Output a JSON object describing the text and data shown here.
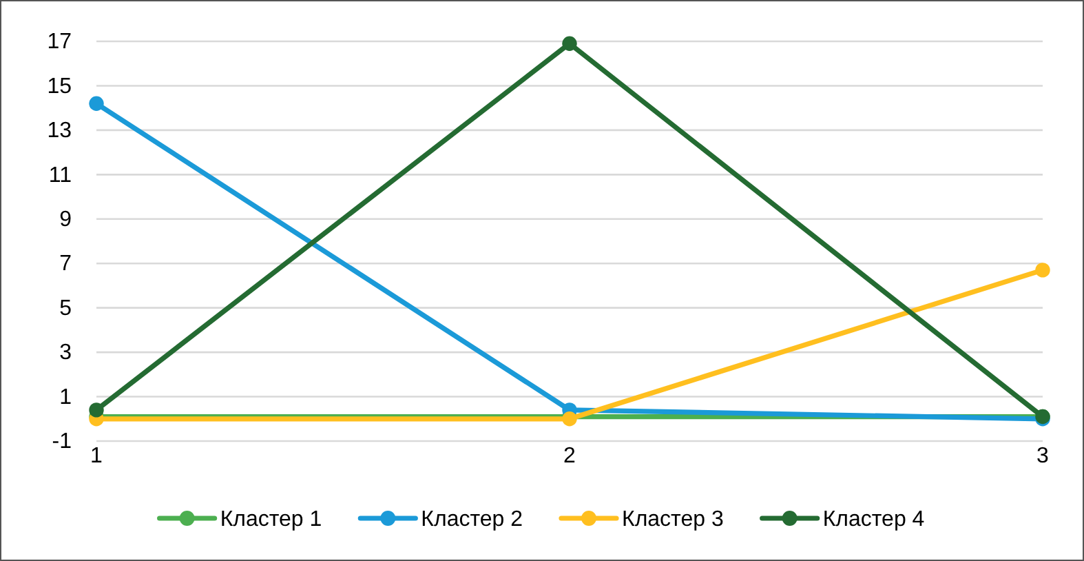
{
  "chart_data": {
    "type": "line",
    "categories": [
      "1",
      "2",
      "3"
    ],
    "series": [
      {
        "name": "Кластер 1",
        "color": "#4caf50",
        "values": [
          0.1,
          0.1,
          0.1
        ]
      },
      {
        "name": "Кластер 2",
        "color": "#1b9ad8",
        "values": [
          14.2,
          0.4,
          0.0
        ]
      },
      {
        "name": "Кластер 3",
        "color": "#ffbf1f",
        "values": [
          0.0,
          0.0,
          6.7
        ]
      },
      {
        "name": "Кластер 4",
        "color": "#246b32",
        "values": [
          0.4,
          16.9,
          0.1
        ]
      }
    ],
    "ylim": [
      -1,
      17
    ],
    "yticks": [
      -1,
      1,
      3,
      5,
      7,
      9,
      11,
      13,
      15,
      17
    ],
    "grid": "y",
    "legend": "bottom",
    "marker": "circle",
    "line_style": "solid"
  }
}
